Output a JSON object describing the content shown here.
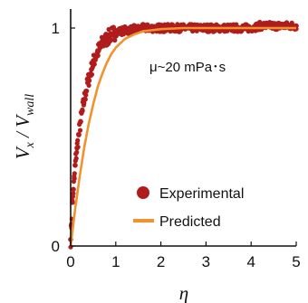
{
  "chart_data": {
    "type": "scatter",
    "title": "",
    "xlabel": "η",
    "ylabel": {
      "main": "V",
      "sub_main": "x",
      "slash": " / ",
      "denom": "V",
      "sub_denom": "wall"
    },
    "xlim": [
      0,
      5
    ],
    "ylim": [
      0,
      1
    ],
    "xticks": [
      0,
      1,
      2,
      3,
      4,
      5
    ],
    "yticks": [
      0,
      1
    ],
    "grid": false,
    "legend": "bottom-right",
    "annotation": "μ~20 mPa･s",
    "colors": {
      "experimental": "#b01c1c",
      "predicted": "#f0922e",
      "axis": "#111111"
    },
    "series": [
      {
        "name": "Experimental",
        "kind": "scatter",
        "points": [
          [
            0.0,
            0.03
          ],
          [
            0.02,
            0.1
          ],
          [
            0.04,
            0.2
          ],
          [
            0.06,
            0.26
          ],
          [
            0.08,
            0.31
          ],
          [
            0.1,
            0.37
          ],
          [
            0.14,
            0.45
          ],
          [
            0.18,
            0.51
          ],
          [
            0.22,
            0.57
          ],
          [
            0.26,
            0.62
          ],
          [
            0.3,
            0.67
          ],
          [
            0.34,
            0.71
          ],
          [
            0.38,
            0.75
          ],
          [
            0.42,
            0.78
          ],
          [
            0.46,
            0.81
          ],
          [
            0.5,
            0.84
          ],
          [
            0.55,
            0.87
          ],
          [
            0.6,
            0.89
          ],
          [
            0.65,
            0.91
          ],
          [
            0.7,
            0.93
          ],
          [
            0.75,
            0.94
          ],
          [
            0.8,
            0.95
          ],
          [
            0.85,
            0.96
          ],
          [
            0.9,
            0.97
          ],
          [
            0.95,
            0.975
          ],
          [
            1.0,
            0.98
          ],
          [
            1.1,
            0.985
          ],
          [
            1.2,
            0.99
          ],
          [
            1.3,
            0.99
          ],
          [
            1.4,
            0.995
          ],
          [
            1.5,
            0.995
          ],
          [
            1.6,
            1.0
          ],
          [
            1.8,
            1.0
          ],
          [
            2.0,
            1.0
          ],
          [
            2.2,
            1.0
          ],
          [
            2.4,
            1.0
          ],
          [
            2.6,
            1.0
          ],
          [
            2.8,
            1.0
          ],
          [
            3.0,
            1.0
          ],
          [
            3.2,
            1.0
          ],
          [
            3.4,
            1.0
          ],
          [
            3.6,
            1.0
          ],
          [
            3.8,
            1.0
          ],
          [
            4.0,
            1.0
          ],
          [
            4.2,
            1.01
          ],
          [
            4.4,
            1.01
          ],
          [
            4.6,
            1.01
          ],
          [
            4.8,
            1.01
          ],
          [
            5.0,
            1.01
          ]
        ]
      },
      {
        "name": "Predicted",
        "kind": "line",
        "points": [
          [
            0.0,
            0.0
          ],
          [
            0.1,
            0.17
          ],
          [
            0.2,
            0.32
          ],
          [
            0.3,
            0.45
          ],
          [
            0.4,
            0.56
          ],
          [
            0.5,
            0.65
          ],
          [
            0.6,
            0.73
          ],
          [
            0.7,
            0.79
          ],
          [
            0.8,
            0.84
          ],
          [
            0.9,
            0.88
          ],
          [
            1.0,
            0.91
          ],
          [
            1.2,
            0.95
          ],
          [
            1.4,
            0.97
          ],
          [
            1.6,
            0.985
          ],
          [
            1.8,
            0.99
          ],
          [
            2.0,
            0.995
          ],
          [
            2.5,
            1.0
          ],
          [
            3.0,
            1.0
          ],
          [
            4.0,
            1.0
          ],
          [
            5.0,
            1.0
          ]
        ]
      }
    ]
  }
}
